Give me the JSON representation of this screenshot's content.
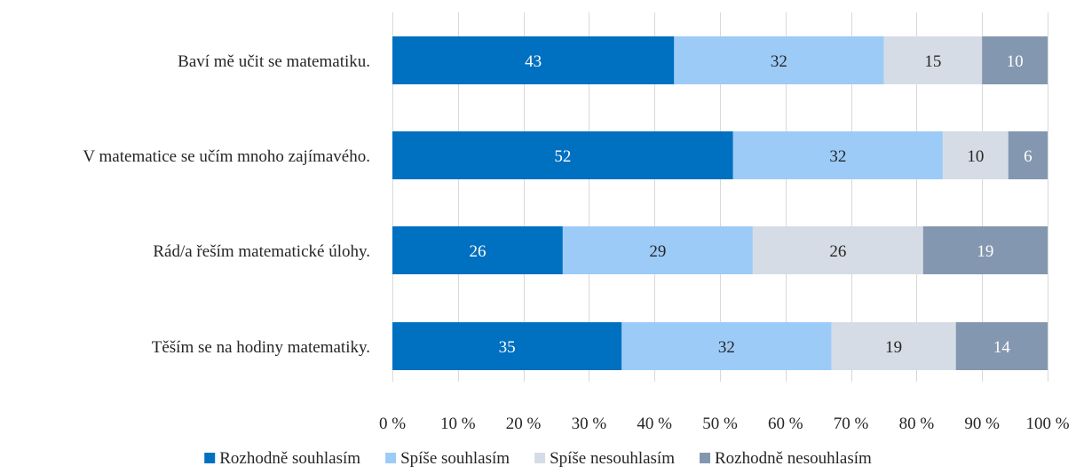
{
  "chart_data": {
    "type": "bar",
    "orientation": "horizontal",
    "stacked": "percent",
    "categories": [
      "Baví mě učit se matematiku.",
      "V matematice se učím mnoho zajímavého.",
      "Rád/a řeším matematické úlohy.",
      "Těším se na hodiny matematiky."
    ],
    "series": [
      {
        "name": "Rozhodně souhlasím",
        "color": "#0070c0",
        "label_color": "#ffffff",
        "values": [
          43,
          52,
          26,
          35
        ]
      },
      {
        "name": "Spíše souhlasím",
        "color": "#9dcbf8",
        "label_color": "#262626",
        "values": [
          32,
          32,
          29,
          32
        ]
      },
      {
        "name": "Spíše nesouhlasím",
        "color": "#d6dce5",
        "label_color": "#262626",
        "values": [
          15,
          10,
          26,
          19
        ]
      },
      {
        "name": "Rozhodně nesouhlasím",
        "color": "#8497b0",
        "label_color": "#ffffff",
        "values": [
          10,
          6,
          19,
          14
        ]
      }
    ],
    "xlim": [
      0,
      100
    ],
    "x_ticks": [
      0,
      10,
      20,
      30,
      40,
      50,
      60,
      70,
      80,
      90,
      100
    ],
    "x_tick_labels": [
      "0 %",
      "10 %",
      "20 %",
      "30 %",
      "40 %",
      "50 %",
      "60 %",
      "70 %",
      "80 %",
      "90 %",
      "100 %"
    ],
    "grid": true,
    "legend_position": "bottom"
  }
}
